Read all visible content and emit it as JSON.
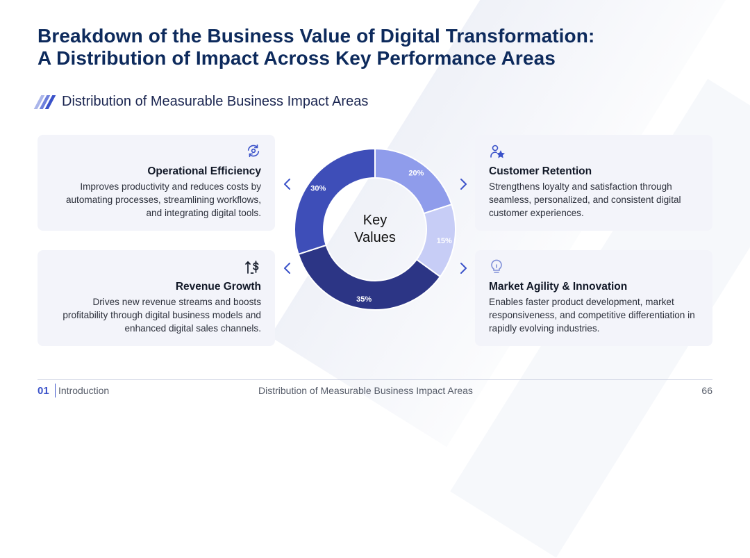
{
  "title": {
    "line1": "Breakdown of the Business Value of Digital Transformation:",
    "line2": "A Distribution of Impact Across Key Performance Areas"
  },
  "subtitle": "Distribution of Measurable Business Impact Areas",
  "cards": [
    {
      "title": "Operational Efficiency",
      "text": "Improves productivity and reduces costs by automating processes, streamlining workflows, and integrating digital tools.",
      "icon": "gear-cycle-icon"
    },
    {
      "title": "Customer Retention",
      "text": "Strengthens loyalty and satisfaction through seamless, personalized, and consistent digital customer experiences.",
      "icon": "user-star-icon"
    },
    {
      "title": "Revenue Growth",
      "text": "Drives new revenue streams and boosts profitability through digital business models and enhanced digital sales channels.",
      "icon": "dollar-up-icon"
    },
    {
      "title": "Market Agility & Innovation",
      "text": "Enables faster product development, market responsiveness, and competitive differentiation in rapidly evolving industries.",
      "icon": "lightbulb-icon"
    }
  ],
  "chart_data": {
    "type": "pie",
    "subtype": "donut",
    "center_label": [
      "Key",
      "Values"
    ],
    "slices": [
      {
        "label": "20%",
        "value": 20,
        "color": "#8f9ceb"
      },
      {
        "label": "15%",
        "value": 15,
        "color": "#c7cdf6"
      },
      {
        "label": "35%",
        "value": 35,
        "color": "#2c3585"
      },
      {
        "label": "30%",
        "value": 30,
        "color": "#3e4eb8"
      }
    ]
  },
  "footer": {
    "section_number": "01",
    "section_name": "Introduction",
    "center_text": "Distribution of Measurable Business Impact Areas",
    "page": "66"
  },
  "colors": {
    "accent": "#3a52c9",
    "title": "#0d2a5c",
    "card_bg": "#f3f4fa"
  }
}
